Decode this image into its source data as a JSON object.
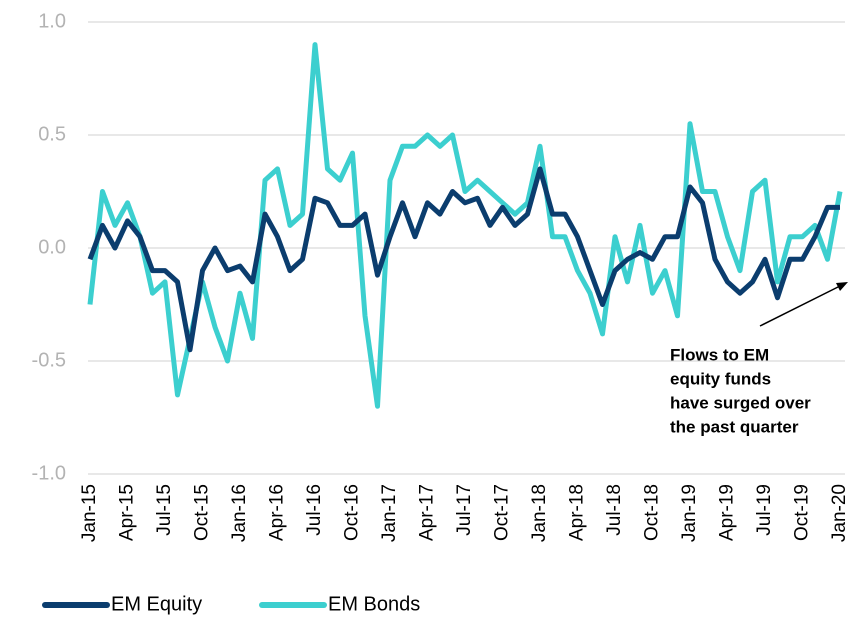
{
  "chart_data": {
    "type": "line",
    "categories": [
      "Jan-15",
      null,
      null,
      "Apr-15",
      null,
      null,
      "Jul-15",
      null,
      null,
      "Oct-15",
      null,
      null,
      "Jan-16",
      null,
      null,
      "Apr-16",
      null,
      null,
      "Jul-16",
      null,
      null,
      "Oct-16",
      null,
      null,
      "Jan-17",
      null,
      null,
      "Apr-17",
      null,
      null,
      "Jul-17",
      null,
      null,
      "Oct-17",
      null,
      null,
      "Jan-18",
      null,
      null,
      "Apr-18",
      null,
      null,
      "Jul-18",
      null,
      null,
      "Oct-18",
      null,
      null,
      "Jan-19",
      null,
      null,
      "Apr-19",
      null,
      null,
      "Jul-19",
      null,
      null,
      "Oct-19",
      null,
      null,
      "Jan-20"
    ],
    "series": [
      {
        "name": "EM Equity",
        "color": "#0b3d6e",
        "values": [
          -0.05,
          0.1,
          0.0,
          0.12,
          0.05,
          -0.1,
          -0.1,
          -0.15,
          -0.45,
          -0.1,
          0.0,
          -0.1,
          -0.08,
          -0.15,
          0.15,
          0.05,
          -0.1,
          -0.05,
          0.22,
          0.2,
          0.1,
          0.1,
          0.15,
          -0.12,
          0.05,
          0.2,
          0.05,
          0.2,
          0.15,
          0.25,
          0.2,
          0.22,
          0.1,
          0.18,
          0.1,
          0.15,
          0.35,
          0.15,
          0.15,
          0.05,
          -0.1,
          -0.25,
          -0.1,
          -0.05,
          -0.02,
          -0.05,
          0.05,
          0.05,
          0.27,
          0.2,
          -0.05,
          -0.15,
          -0.2,
          -0.15,
          -0.05,
          -0.22,
          -0.05,
          -0.05,
          0.05,
          0.18,
          0.18
        ]
      },
      {
        "name": "EM Bonds",
        "color": "#3ccfcf",
        "values": [
          -0.25,
          0.25,
          0.1,
          0.2,
          0.05,
          -0.2,
          -0.15,
          -0.65,
          -0.4,
          -0.15,
          -0.35,
          -0.5,
          -0.2,
          -0.4,
          0.3,
          0.35,
          0.1,
          0.15,
          0.9,
          0.35,
          0.3,
          0.42,
          -0.3,
          -0.7,
          0.3,
          0.45,
          0.45,
          0.5,
          0.45,
          0.5,
          0.25,
          0.3,
          0.25,
          0.2,
          0.15,
          0.2,
          0.45,
          0.05,
          0.05,
          -0.1,
          -0.2,
          -0.38,
          0.05,
          -0.15,
          0.1,
          -0.2,
          -0.1,
          -0.3,
          0.55,
          0.25,
          0.25,
          0.05,
          -0.1,
          0.25,
          0.3,
          -0.15,
          0.05,
          0.05,
          0.1,
          -0.05,
          0.25
        ]
      }
    ],
    "ylim": [
      -1.0,
      1.0
    ],
    "yticks": [
      {
        "value": -1.0,
        "label": "-1.0"
      },
      -0.5,
      {
        "value": 0.0,
        "label": "0.0"
      },
      0.5,
      {
        "value": 1.0,
        "label": "1.0"
      }
    ],
    "grid": true,
    "legend": "bottom",
    "annotation": [
      "Flows to EM",
      "equity funds",
      "have surged over",
      "the past quarter"
    ]
  }
}
